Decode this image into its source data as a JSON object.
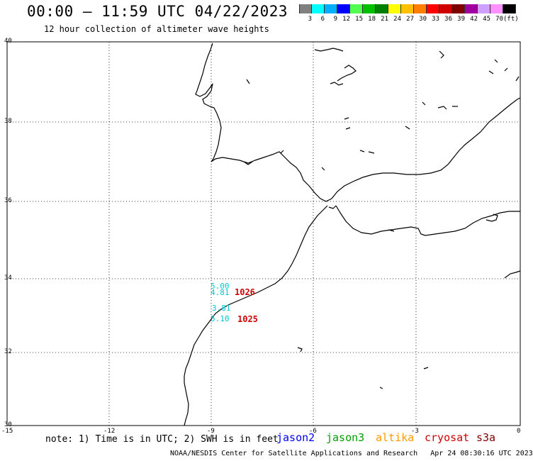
{
  "header": {
    "title": "00:00 – 11:59 UTC 04/22/2023",
    "subtitle": "12 hour collection of altimeter wave heights"
  },
  "legend": {
    "colors": [
      "#808080",
      "#00ffff",
      "#00b0ff",
      "#0000ff",
      "#50ff50",
      "#00c000",
      "#008000",
      "#ffff00",
      "#ffc000",
      "#ff8000",
      "#ff0000",
      "#d00000",
      "#800000",
      "#a000a0",
      "#d0a0ff",
      "#ff90ff",
      "#000000"
    ],
    "labels": [
      "3",
      "6",
      "9",
      "12",
      "15",
      "18",
      "21",
      "24",
      "27",
      "30",
      "33",
      "36",
      "39",
      "42",
      "45",
      "70",
      "(ft)"
    ]
  },
  "axes": {
    "lat_labels": [
      "40",
      "38",
      "36",
      "34",
      "32",
      "30"
    ],
    "lon_labels": [
      "-15",
      "-12",
      "-9",
      "-6",
      "-3",
      "0"
    ]
  },
  "observations": {
    "obs1_a": "5.00",
    "obs1_b": "4.81",
    "pass1": "1026",
    "obs2_a": "3.81",
    "obs2_b": "5.10",
    "pass2": "1025"
  },
  "footer": {
    "note": "note: 1) Time is in UTC; 2) SWH is in feet",
    "satellites": [
      {
        "name": "jason2",
        "color": "#0000ff"
      },
      {
        "name": "jason3",
        "color": "#00a000"
      },
      {
        "name": "altika",
        "color": "#ff9900"
      },
      {
        "name": "cryosat",
        "color": "#d00000"
      },
      {
        "name": "s3a",
        "color": "#800000"
      }
    ],
    "credit": "NOAA/NESDIS Center for Satellite Applications and Research",
    "timestamp": "Apr 24 08:30:16 UTC 2023"
  }
}
